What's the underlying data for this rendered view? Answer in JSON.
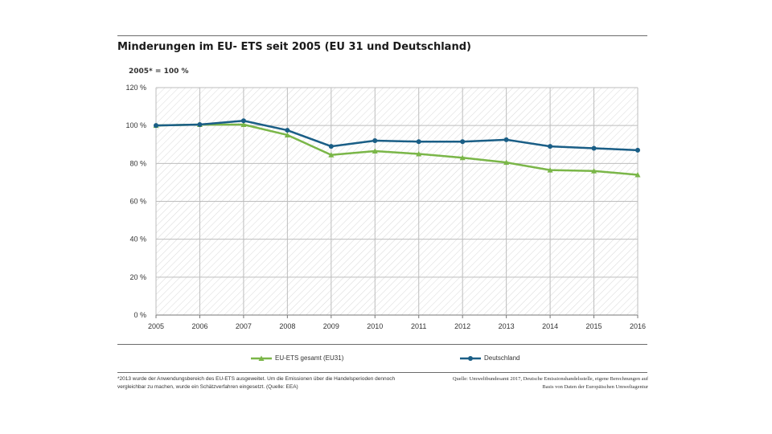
{
  "header": {
    "title": "Minderungen im EU- ETS seit 2005 (EU 31 und Deutschland)",
    "unit_note": "2005* = 100 %"
  },
  "legend": {
    "items": [
      {
        "label": "EU-ETS gesamt (EU31)",
        "color": "#7ab648",
        "marker": "triangle"
      },
      {
        "label": "Deutschland",
        "color": "#1a5e86",
        "marker": "circle"
      }
    ]
  },
  "footer": {
    "footnote": "*2013 wurde der Anwendungsbereich des EU-ETS ausgeweitet. Um die Emissionen über die Handelsperioden dennoch vergleichbar zu machen, wurde ein Schätzverfahren eingesetzt. (Quelle: EEA)",
    "source": "Quelle: Umweltbundesamt 2017, Deutsche Emissionshandelsstelle, eigene Berechnungen auf Basis von Daten der Europäischen Umweltagentur"
  },
  "chart_data": {
    "type": "line",
    "title": "Minderungen im EU- ETS seit 2005 (EU 31 und Deutschland)",
    "subtitle": "2005* = 100 %",
    "xlabel": "",
    "ylabel": "",
    "x": [
      "2005",
      "2006",
      "2007",
      "2008",
      "2009",
      "2010",
      "2011",
      "2012",
      "2013",
      "2014",
      "2015",
      "2016"
    ],
    "ylim": [
      0,
      120
    ],
    "yticks": [
      0,
      20,
      40,
      60,
      80,
      100,
      120
    ],
    "ytick_labels": [
      "0 %",
      "20 %",
      "40 %",
      "60 %",
      "80 %",
      "100 %",
      "120 %"
    ],
    "grid": "horizontal",
    "legend_position": "bottom",
    "series": [
      {
        "name": "EU-ETS gesamt (EU31)",
        "color": "#7ab648",
        "marker": "triangle",
        "values": [
          100,
          100.5,
          100.5,
          95,
          84.5,
          86.5,
          85,
          83,
          80.5,
          76.5,
          76,
          74
        ]
      },
      {
        "name": "Deutschland",
        "color": "#1a5e86",
        "marker": "circle",
        "values": [
          100,
          100.5,
          102.5,
          97.5,
          89,
          92,
          91.5,
          91.5,
          92.5,
          89,
          88,
          87
        ]
      }
    ]
  }
}
